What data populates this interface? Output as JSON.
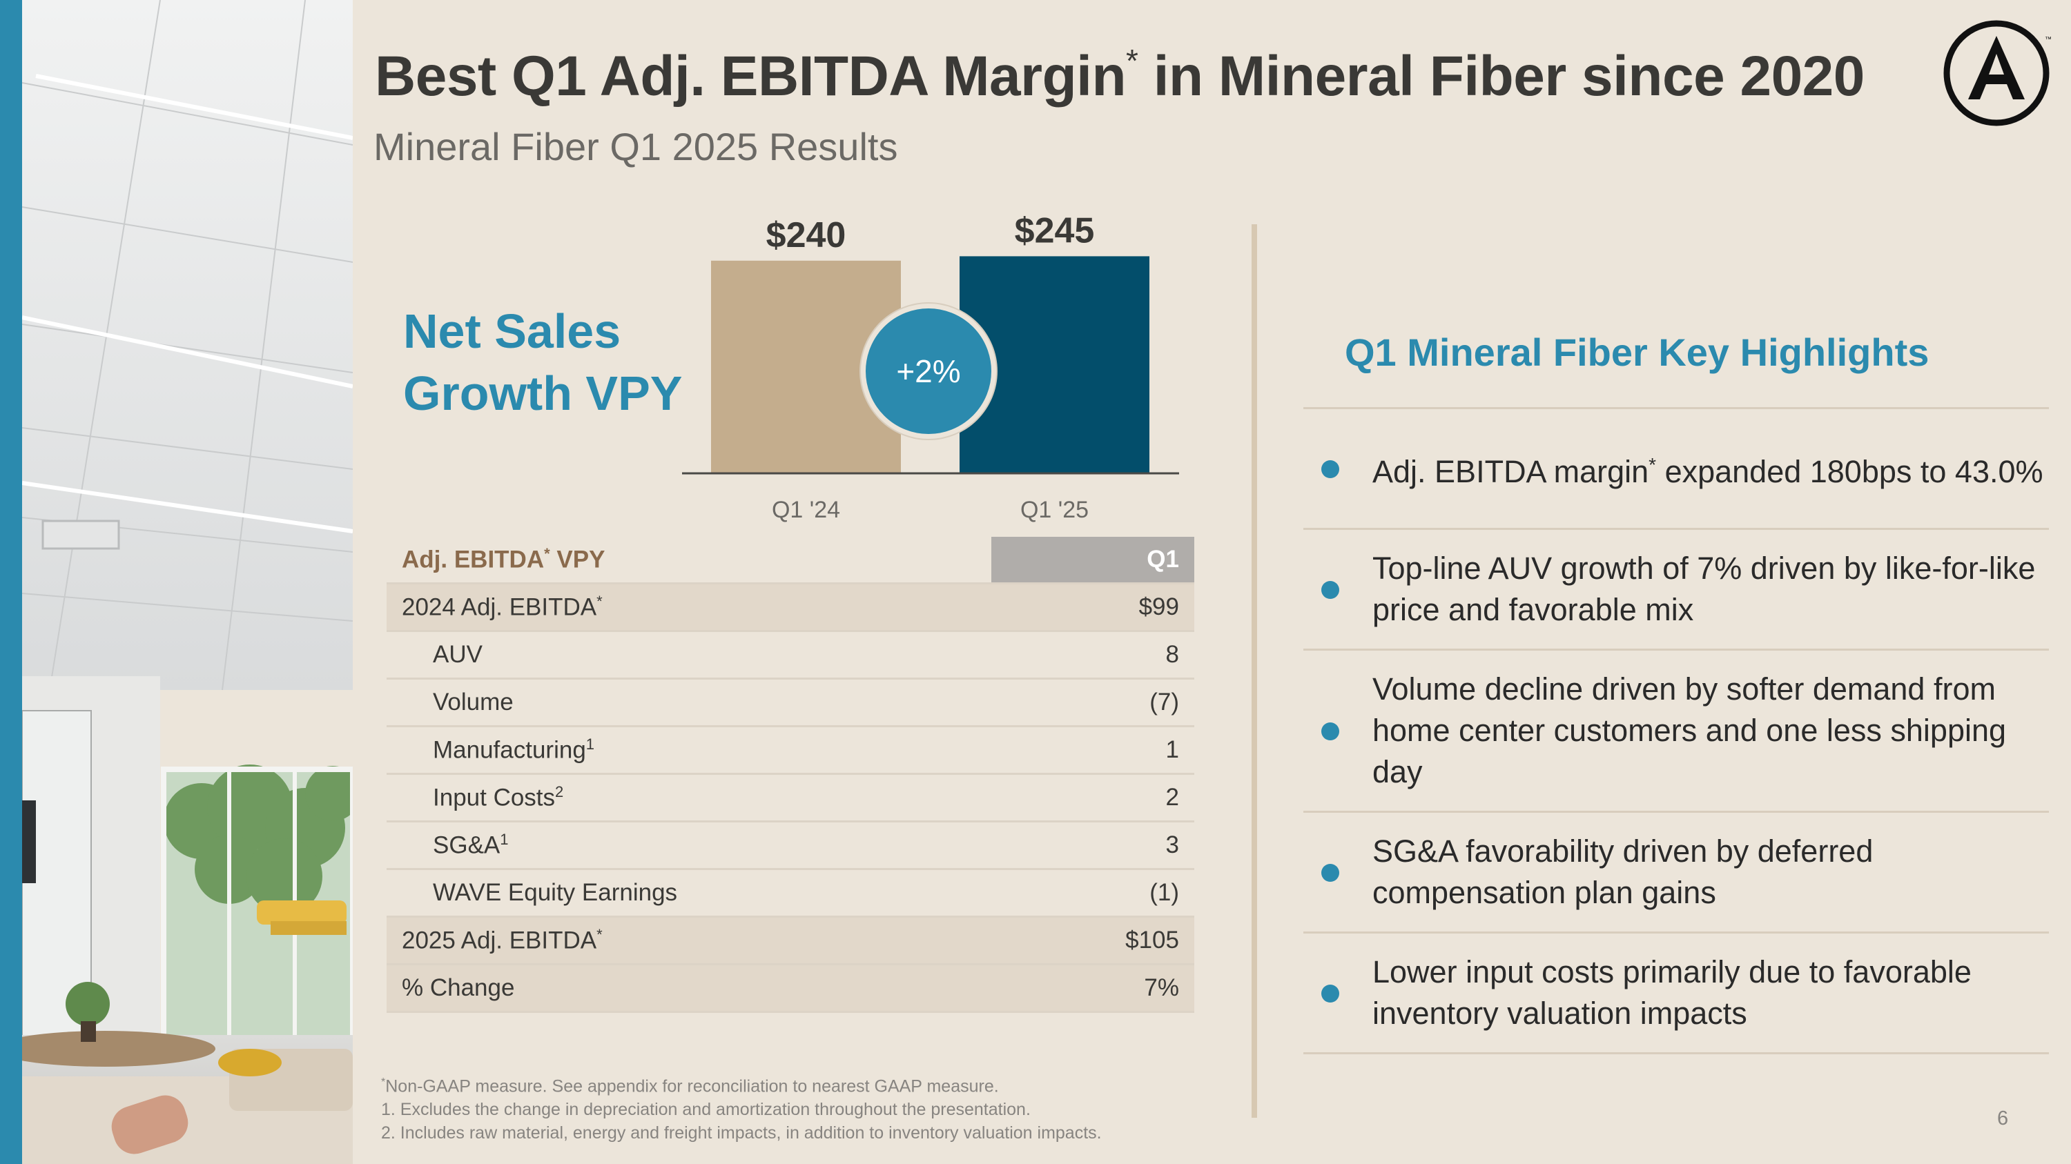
{
  "slide": {
    "title_pre": "Best Q1 Adj. EBITDA Margin",
    "title_mark": "*",
    "title_post": " in Mineral Fiber since 2020",
    "subtitle": "Mineral Fiber Q1 2025 Results",
    "page_number": "6"
  },
  "net_sales": {
    "title_line1": "Net Sales",
    "title_line2": "Growth VPY",
    "growth_badge": "+2%"
  },
  "chart_data": {
    "type": "bar",
    "categories": [
      "Q1 '24",
      "Q1 '25"
    ],
    "values": [
      240,
      245
    ],
    "value_labels": [
      "$240",
      "$245"
    ],
    "colors": [
      "#c4ad8d",
      "#034e6b"
    ],
    "title": "",
    "xlabel": "",
    "ylabel": "",
    "ylim": [
      0,
      250
    ],
    "grid": false
  },
  "ebitda_table": {
    "header_label": "Adj. EBITDA",
    "header_mark": "*",
    "header_suffix": " VPY",
    "header_col": "Q1",
    "rows": [
      {
        "label": "2024 Adj. EBITDA",
        "mark": "*",
        "value": "$99"
      },
      {
        "label": "AUV",
        "mark": "",
        "value": "8"
      },
      {
        "label": "Volume",
        "mark": "",
        "value": "(7)"
      },
      {
        "label": "Manufacturing",
        "mark": "1",
        "value": "1"
      },
      {
        "label": "Input Costs",
        "mark": "2",
        "value": "2"
      },
      {
        "label": "SG&A",
        "mark": "1",
        "value": "3"
      },
      {
        "label": "WAVE Equity Earnings",
        "mark": "",
        "value": "(1)"
      },
      {
        "label": "2025 Adj. EBITDA",
        "mark": "*",
        "value": "$105"
      },
      {
        "label": "% Change",
        "mark": "",
        "value": "7%"
      }
    ]
  },
  "highlights": {
    "title": "Q1 Mineral Fiber Key Highlights",
    "items": [
      {
        "pre": "Adj. EBITDA margin",
        "mark": "*",
        "post": " expanded 180bps to 43.0%"
      },
      {
        "pre": "Top-line AUV growth of 7% driven by like-for-like price and favorable mix",
        "mark": "",
        "post": ""
      },
      {
        "pre": "Volume decline driven by softer demand from home center customers and one less shipping day",
        "mark": "",
        "post": ""
      },
      {
        "pre": "SG&A favorability driven by deferred compensation plan gains",
        "mark": "",
        "post": ""
      },
      {
        "pre": "Lower input costs primarily due to favorable inventory valuation impacts",
        "mark": "",
        "post": ""
      }
    ]
  },
  "footnotes": {
    "line1_mark": "*",
    "line1": "Non-GAAP measure. See appendix for reconciliation to nearest GAAP measure.",
    "line2": "1. Excludes the change in depreciation and amortization throughout the presentation.",
    "line3": "2. Includes raw material, energy and freight impacts, in addition to inventory valuation impacts."
  },
  "colors": {
    "accent": "#2b8aae",
    "background": "#ece5da",
    "bar_prior": "#c4ad8d",
    "bar_current": "#034e6b"
  },
  "icons": {
    "logo": "armstrong-a-circle-logo"
  }
}
